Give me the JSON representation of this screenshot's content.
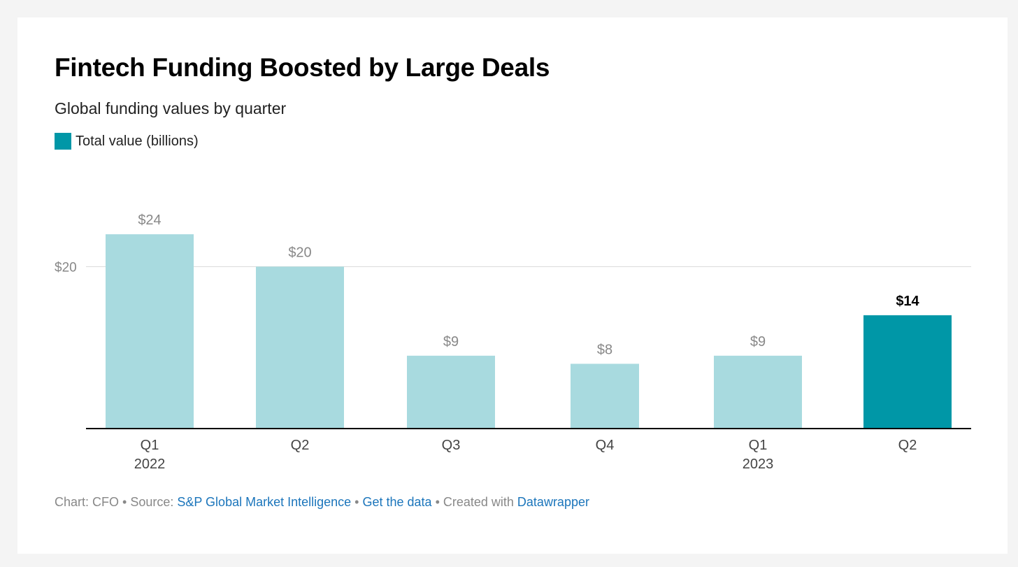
{
  "chart_data": {
    "type": "bar",
    "title": "Fintech Funding Boosted by Large Deals",
    "subtitle": "Global funding values by quarter",
    "legend": [
      {
        "name": "Total value (billions)",
        "color": "#0097a7"
      }
    ],
    "categories": [
      "Q1",
      "Q2",
      "Q3",
      "Q4",
      "Q1",
      "Q2"
    ],
    "category_years": [
      "2022",
      "",
      "",
      "",
      "2023",
      ""
    ],
    "values": [
      24,
      20,
      9,
      8,
      9,
      14
    ],
    "value_labels": [
      "$24",
      "$20",
      "$9",
      "$8",
      "$9",
      "$14"
    ],
    "highlight_index": 5,
    "yticks": [
      {
        "value": 20,
        "label": "$20"
      }
    ],
    "ylim": [
      0,
      24
    ],
    "grid": true,
    "colors": {
      "bar": "#a8dadf",
      "highlight": "#0097a7",
      "grid": "#d9d9d9",
      "axis": "#000000",
      "tick_text": "#888888"
    }
  },
  "footer": {
    "chart_prefix": "Chart: CFO • Source: ",
    "source_link": "S&P Global Market Intelligence",
    "sep1": " • ",
    "get_data_link": "Get the data",
    "sep2": " • Created with ",
    "datawrapper_link": "Datawrapper"
  }
}
